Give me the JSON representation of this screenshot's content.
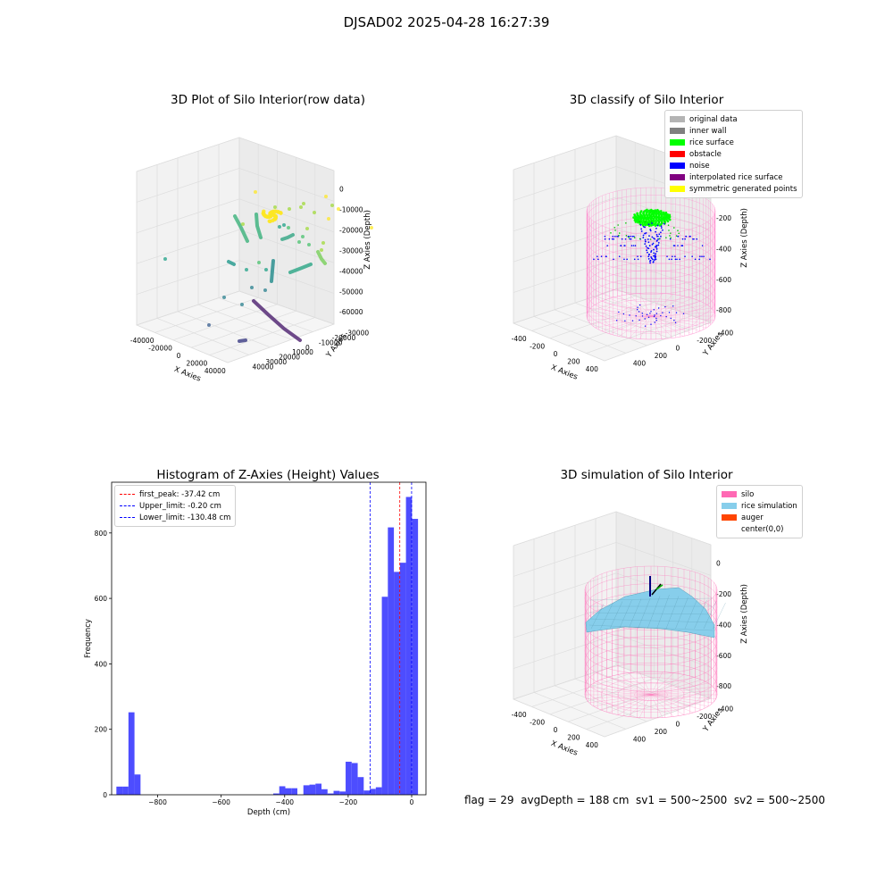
{
  "suptitle": "DJSAD02 2025-04-28 16:27:39",
  "footer": "flag = 29  avgDepth = 188 cm  sv1 = 500~2500  sv2 = 500~2500",
  "chart_data": [
    {
      "id": "raw",
      "type": "scatter3d",
      "title": "3D Plot of Silo Interior(row data)",
      "xlabel": "X Axies",
      "ylabel": "Y Axies",
      "zlabel": "Z Axies (Depth)",
      "xticks": [
        "-40000",
        "-20000",
        "0",
        "20000",
        "40000"
      ],
      "yticks": [
        "-30000",
        "-20000",
        "-10000",
        "0",
        "10000",
        "20000",
        "30000",
        "40000"
      ],
      "zticks": [
        "0",
        "-10000",
        "-20000",
        "-30000",
        "-40000",
        "-50000",
        "-60000"
      ],
      "colormap": "viridis by depth",
      "grid": true
    },
    {
      "id": "classify",
      "type": "scatter3d",
      "title": "3D classify of Silo Interior",
      "xlabel": "X Axies",
      "ylabel": "Y Axies",
      "zlabel": "Z Axies (Depth)",
      "xticks": [
        "-400",
        "-200",
        "0",
        "200",
        "400"
      ],
      "yticks": [
        "-400",
        "-200",
        "0",
        "200",
        "400"
      ],
      "zticks": [
        "0",
        "-200",
        "-400",
        "-600",
        "-800"
      ],
      "legend_position": "top-right",
      "legend": [
        {
          "label": "original data",
          "color": "#b4b4b4"
        },
        {
          "label": "inner wall",
          "color": "#808080"
        },
        {
          "label": "rice surface",
          "color": "#00ff00"
        },
        {
          "label": "obstacle",
          "color": "#ff0000"
        },
        {
          "label": "noise",
          "color": "#0000ff"
        },
        {
          "label": "interpolated rice surface",
          "color": "#800080"
        },
        {
          "label": "symmetric generated points",
          "color": "#ffff00"
        }
      ],
      "grid": true
    },
    {
      "id": "hist",
      "type": "bar",
      "title": "Histogram of Z-Axies (Height) Values",
      "xlabel": "Depth (cm)",
      "ylabel": "Frequency",
      "xlim": [
        -945,
        45
      ],
      "ylim": [
        0,
        955
      ],
      "xticks": [
        -800,
        -600,
        -400,
        -200,
        0
      ],
      "yticks": [
        0,
        200,
        400,
        600,
        800
      ],
      "bar_color": "#4d4dff",
      "bin_width": 19,
      "bins": [
        {
          "x0": -930,
          "v": 25
        },
        {
          "x0": -911,
          "v": 25
        },
        {
          "x0": -892,
          "v": 252
        },
        {
          "x0": -873,
          "v": 62
        },
        {
          "x0": -436,
          "v": 4
        },
        {
          "x0": -417,
          "v": 26
        },
        {
          "x0": -398,
          "v": 20
        },
        {
          "x0": -379,
          "v": 20
        },
        {
          "x0": -341,
          "v": 29
        },
        {
          "x0": -322,
          "v": 31
        },
        {
          "x0": -303,
          "v": 34
        },
        {
          "x0": -284,
          "v": 17
        },
        {
          "x0": -265,
          "v": 4
        },
        {
          "x0": -246,
          "v": 12
        },
        {
          "x0": -227,
          "v": 10
        },
        {
          "x0": -208,
          "v": 101
        },
        {
          "x0": -189,
          "v": 97
        },
        {
          "x0": -170,
          "v": 54
        },
        {
          "x0": -151,
          "v": 13
        },
        {
          "x0": -132,
          "v": 18
        },
        {
          "x0": -113,
          "v": 23
        },
        {
          "x0": -94,
          "v": 605
        },
        {
          "x0": -75,
          "v": 817
        },
        {
          "x0": -56,
          "v": 681
        },
        {
          "x0": -37,
          "v": 709
        },
        {
          "x0": -18,
          "v": 910
        },
        {
          "x0": 1,
          "v": 843
        }
      ],
      "vlines": [
        {
          "label": "first_peak: -37.42 cm",
          "x": -37.42,
          "color": "#ff0000"
        },
        {
          "label": "Upper_limit: -0.20 cm",
          "x": -0.2,
          "color": "#0000ff"
        },
        {
          "label": "Lower_limit: -130.48 cm",
          "x": -130.48,
          "color": "#0000ff"
        }
      ],
      "legend_position": "top-left"
    },
    {
      "id": "sim",
      "type": "surface3d",
      "title": "3D simulation of Silo Interior",
      "xlabel": "X Axies",
      "ylabel": "Y Axies",
      "zlabel": "Z Axies (Depth)",
      "xticks": [
        "-400",
        "-200",
        "0",
        "200",
        "400"
      ],
      "yticks": [
        "-400",
        "-200",
        "0",
        "200",
        "400"
      ],
      "zticks": [
        "0",
        "-200",
        "-400",
        "-600",
        "-800"
      ],
      "legend_position": "top-right",
      "legend": [
        {
          "label": "silo",
          "color": "#ff69b4"
        },
        {
          "label": "rice simulation",
          "color": "#87ceeb"
        },
        {
          "label": "auger",
          "color": "#ff4500"
        },
        {
          "label": "center(0,0)",
          "color": ""
        }
      ],
      "grid": true
    }
  ]
}
